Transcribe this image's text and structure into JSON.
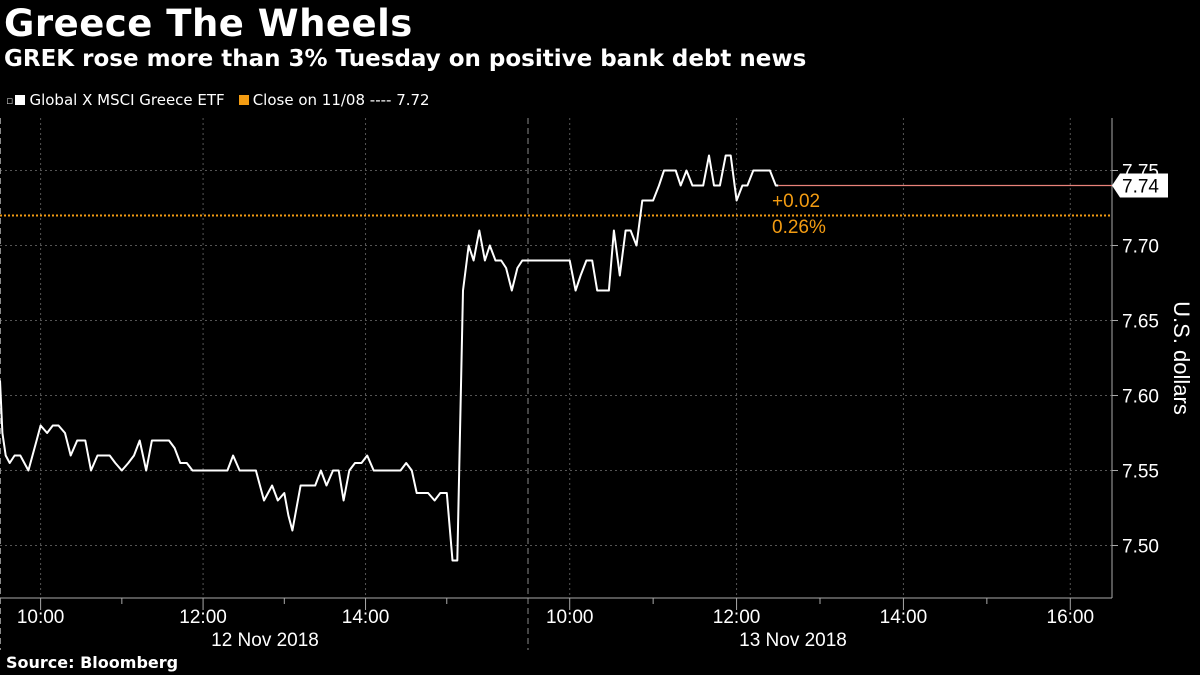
{
  "title": "Greece The Wheels",
  "subtitle": "GREK rose more than 3% Tuesday on positive bank debt news",
  "source": "Source: Bloomberg",
  "legend": [
    {
      "label": "Global X MSCI Greece ETF",
      "color": "#ffffff"
    },
    {
      "label": "Close on 11/08 ---- 7.72",
      "color": "#f39c12"
    }
  ],
  "colors": {
    "line": "#ffffff",
    "close": "#f39c12",
    "last": "#e8827a",
    "grid": "#555555"
  },
  "chart_data": {
    "type": "line",
    "ylabel": "U.S. dollars",
    "ylim": [
      7.465,
      7.785
    ],
    "y_ticks": [
      7.5,
      7.55,
      7.6,
      7.65,
      7.7,
      7.75
    ],
    "y_tick_labels": [
      "7.50",
      "7.55",
      "7.60",
      "7.65",
      "7.70",
      "7.75"
    ],
    "grid": true,
    "sessions": [
      {
        "date": "12 Nov 2018",
        "x_range": [
          9.5,
          16.0
        ],
        "x_ticks": [
          10,
          12,
          14
        ],
        "x_tick_labels": [
          "10:00",
          "12:00",
          "14:00"
        ]
      },
      {
        "date": "13 Nov 2018",
        "x_range": [
          9.5,
          16.5
        ],
        "x_ticks": [
          10,
          12,
          14,
          16
        ],
        "x_tick_labels": [
          "10:00",
          "12:00",
          "14:00",
          "16:00"
        ]
      }
    ],
    "series": [
      {
        "name": "Global X MSCI Greece ETF",
        "segments": [
          {
            "session": 0,
            "x": [
              9.5,
              9.53,
              9.57,
              9.62,
              9.68,
              9.75,
              9.85,
              9.95,
              10.0,
              10.08,
              10.15,
              10.22,
              10.3,
              10.37,
              10.45,
              10.55,
              10.62,
              10.7,
              10.78,
              10.85,
              10.92,
              11.0,
              11.08,
              11.15,
              11.22,
              11.3,
              11.37,
              11.43,
              11.5,
              11.58,
              11.65,
              11.72,
              11.8,
              11.87,
              11.93,
              12.0,
              12.1,
              12.2,
              12.3,
              12.37,
              12.45,
              12.55,
              12.65,
              12.75,
              12.85,
              12.92,
              13.0,
              13.05,
              13.1,
              13.2,
              13.3,
              13.38,
              13.45,
              13.52,
              13.6,
              13.67,
              13.73,
              13.8,
              13.87,
              13.95,
              14.02,
              14.1,
              14.17,
              14.23,
              14.3,
              14.37,
              14.43,
              14.5,
              14.57,
              14.63,
              14.7,
              14.77,
              14.85,
              14.92,
              15.0,
              15.07,
              15.13,
              15.2,
              15.27,
              15.33,
              15.4,
              15.47,
              15.53,
              15.6,
              15.67,
              15.73,
              15.8,
              15.87,
              15.93
            ],
            "y": [
              7.61,
              7.575,
              7.56,
              7.555,
              7.56,
              7.56,
              7.55,
              7.57,
              7.58,
              7.575,
              7.58,
              7.58,
              7.575,
              7.56,
              7.57,
              7.57,
              7.55,
              7.56,
              7.56,
              7.56,
              7.555,
              7.55,
              7.555,
              7.56,
              7.57,
              7.55,
              7.57,
              7.57,
              7.57,
              7.57,
              7.565,
              7.555,
              7.555,
              7.55,
              7.55,
              7.55,
              7.55,
              7.55,
              7.55,
              7.56,
              7.55,
              7.55,
              7.55,
              7.53,
              7.54,
              7.53,
              7.535,
              7.52,
              7.51,
              7.54,
              7.54,
              7.54,
              7.55,
              7.54,
              7.55,
              7.55,
              7.53,
              7.55,
              7.555,
              7.555,
              7.56,
              7.55,
              7.55,
              7.55,
              7.55,
              7.55,
              7.55,
              7.555,
              7.55,
              7.535,
              7.535,
              7.535,
              7.53,
              7.535,
              7.535,
              7.49,
              7.49,
              7.67,
              7.7,
              7.69,
              7.71,
              7.69,
              7.7,
              7.69,
              7.69,
              7.685,
              7.67,
              7.685,
              7.69
            ]
          },
          {
            "session": 1,
            "x": [
              10.0,
              10.07,
              10.13,
              10.2,
              10.27,
              10.33,
              10.4,
              10.47,
              10.53,
              10.6,
              10.67,
              10.73,
              10.8,
              10.87,
              10.93,
              11.0,
              11.07,
              11.13,
              11.2,
              11.27,
              11.33,
              11.4,
              11.47,
              11.53,
              11.6,
              11.67,
              11.73,
              11.8,
              11.87,
              11.93,
              12.0,
              12.07,
              12.13,
              12.2,
              12.27,
              12.33,
              12.4,
              12.47,
              12.5
            ],
            "y": [
              7.69,
              7.67,
              7.68,
              7.69,
              7.69,
              7.67,
              7.67,
              7.67,
              7.71,
              7.68,
              7.71,
              7.71,
              7.7,
              7.73,
              7.73,
              7.73,
              7.74,
              7.75,
              7.75,
              7.75,
              7.74,
              7.75,
              7.74,
              7.74,
              7.74,
              7.76,
              7.74,
              7.74,
              7.76,
              7.76,
              7.73,
              7.74,
              7.74,
              7.75,
              7.75,
              7.75,
              7.75,
              7.74,
              7.74
            ]
          }
        ]
      }
    ],
    "reference_lines": [
      {
        "label": "Close on 11/08",
        "value": 7.72,
        "style": "dotted"
      }
    ],
    "last_value": {
      "value": 7.74,
      "label": "7.74"
    },
    "annotations": [
      {
        "text": "+0.02"
      },
      {
        "text": "0.26%"
      }
    ]
  }
}
